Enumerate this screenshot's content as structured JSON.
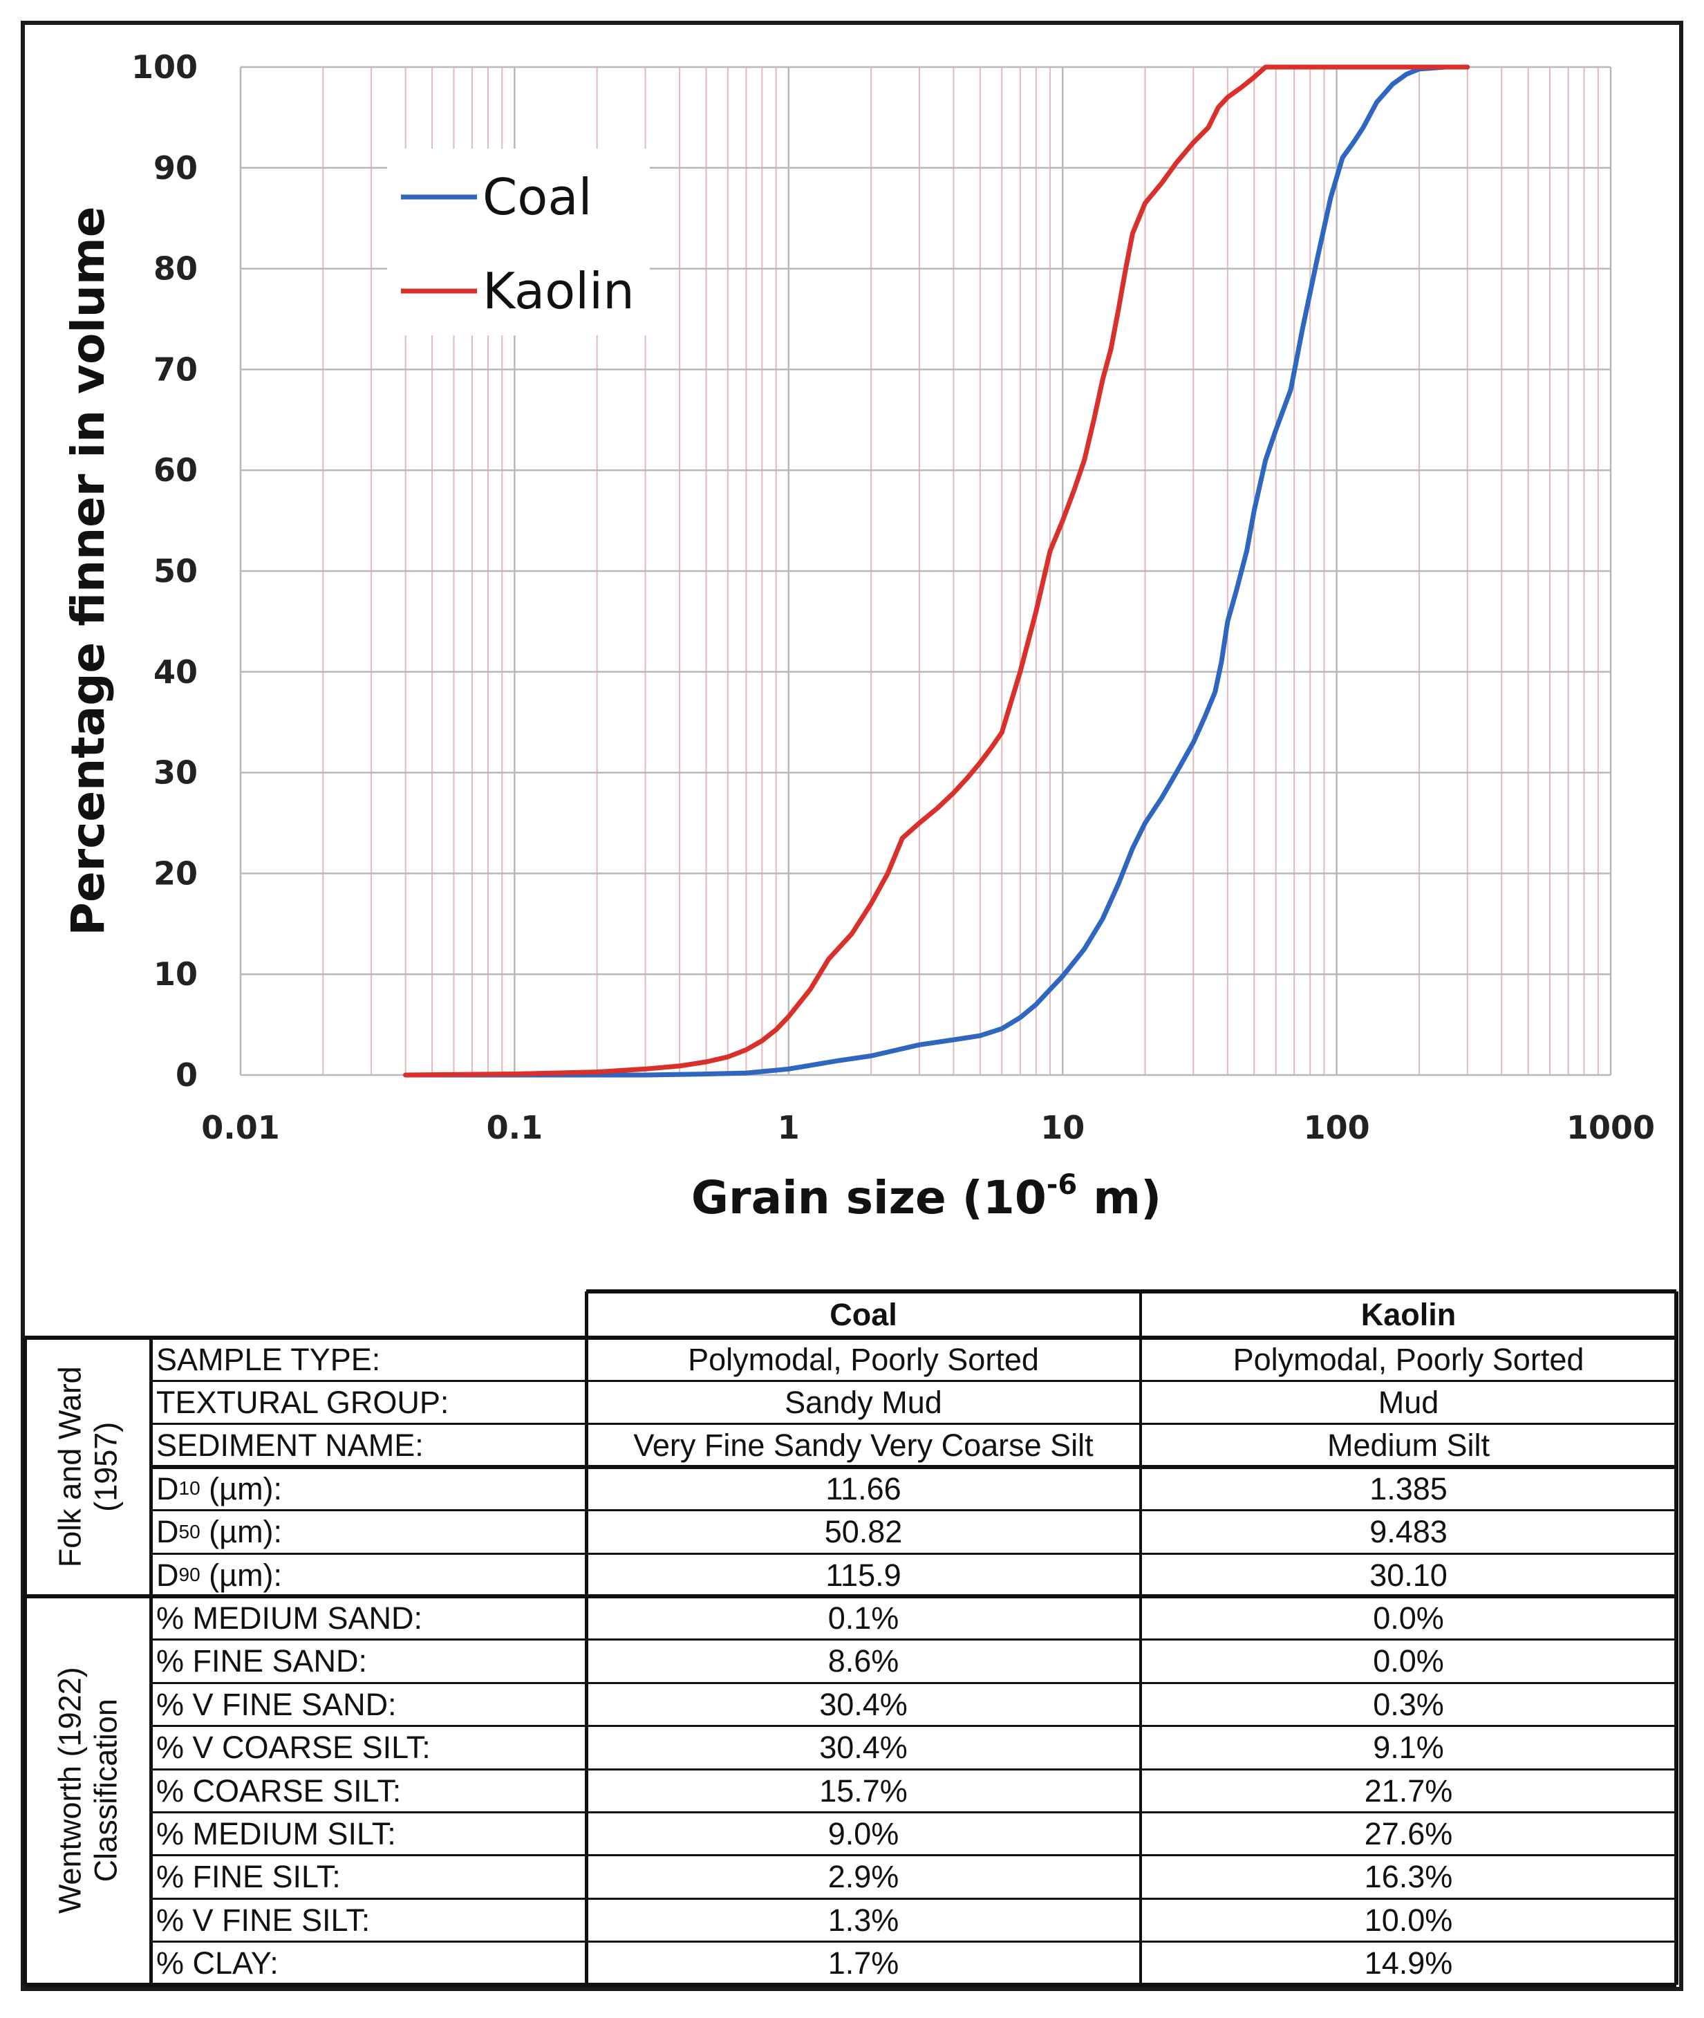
{
  "chart_data": {
    "type": "line",
    "xscale": "log",
    "xlim": [
      0.01,
      1000
    ],
    "ylim": [
      0,
      100
    ],
    "xlabel_main": "Grain size (10",
    "xlabel_sup": "-6",
    "xlabel_tail": " m)",
    "ylabel": "Percentage finner in volume",
    "x_ticks": [
      "0.01",
      "0.1",
      "1",
      "10",
      "100",
      "1000"
    ],
    "y_ticks": [
      "0",
      "10",
      "20",
      "30",
      "40",
      "50",
      "60",
      "70",
      "80",
      "90",
      "100"
    ],
    "grid": true,
    "legend_position": "top-left",
    "series": [
      {
        "name": "Coal",
        "color": "#2e66c0",
        "points": [
          [
            0.04,
            0
          ],
          [
            0.1,
            0
          ],
          [
            0.3,
            0
          ],
          [
            0.5,
            0.1
          ],
          [
            0.7,
            0.2
          ],
          [
            1,
            0.6
          ],
          [
            1.5,
            1.4
          ],
          [
            2,
            1.9
          ],
          [
            3,
            3
          ],
          [
            4,
            3.5
          ],
          [
            5,
            3.9
          ],
          [
            6,
            4.6
          ],
          [
            7,
            5.7
          ],
          [
            8,
            7
          ],
          [
            9,
            8.5
          ],
          [
            10,
            9.8
          ],
          [
            12,
            12.5
          ],
          [
            14,
            15.5
          ],
          [
            16,
            19
          ],
          [
            18,
            22.5
          ],
          [
            20,
            25
          ],
          [
            23,
            27.5
          ],
          [
            26,
            30
          ],
          [
            30,
            33
          ],
          [
            33,
            35.5
          ],
          [
            36,
            38
          ],
          [
            38,
            41
          ],
          [
            40,
            45
          ],
          [
            43,
            48
          ],
          [
            47,
            52
          ],
          [
            50,
            56
          ],
          [
            55,
            61
          ],
          [
            60,
            64
          ],
          [
            68,
            68
          ],
          [
            75,
            74
          ],
          [
            85,
            81
          ],
          [
            95,
            87
          ],
          [
            105,
            91
          ],
          [
            115,
            92.5
          ],
          [
            125,
            94
          ],
          [
            140,
            96.5
          ],
          [
            160,
            98.3
          ],
          [
            180,
            99.3
          ],
          [
            200,
            99.8
          ],
          [
            250,
            100
          ],
          [
            300,
            100
          ]
        ]
      },
      {
        "name": "Kaolin",
        "color": "#d9302c",
        "points": [
          [
            0.04,
            0
          ],
          [
            0.1,
            0.1
          ],
          [
            0.2,
            0.3
          ],
          [
            0.3,
            0.6
          ],
          [
            0.4,
            0.9
          ],
          [
            0.5,
            1.3
          ],
          [
            0.6,
            1.8
          ],
          [
            0.7,
            2.5
          ],
          [
            0.8,
            3.4
          ],
          [
            0.9,
            4.5
          ],
          [
            1,
            5.8
          ],
          [
            1.2,
            8.5
          ],
          [
            1.4,
            11.5
          ],
          [
            1.7,
            14
          ],
          [
            2,
            17
          ],
          [
            2.3,
            20
          ],
          [
            2.6,
            23.5
          ],
          [
            3,
            25
          ],
          [
            3.5,
            26.5
          ],
          [
            4,
            28
          ],
          [
            4.5,
            29.5
          ],
          [
            5,
            31
          ],
          [
            5.5,
            32.5
          ],
          [
            6,
            34
          ],
          [
            7,
            40
          ],
          [
            8,
            46
          ],
          [
            9,
            52
          ],
          [
            10,
            55
          ],
          [
            11,
            58
          ],
          [
            12,
            61
          ],
          [
            13,
            65
          ],
          [
            14,
            69
          ],
          [
            15,
            72
          ],
          [
            16,
            76
          ],
          [
            17,
            80
          ],
          [
            18,
            83.5
          ],
          [
            20,
            86.5
          ],
          [
            23,
            88.5
          ],
          [
            26,
            90.5
          ],
          [
            30,
            92.5
          ],
          [
            34,
            94
          ],
          [
            37,
            96
          ],
          [
            40,
            97
          ],
          [
            45,
            98
          ],
          [
            50,
            99
          ],
          [
            55,
            100
          ],
          [
            100,
            100
          ],
          [
            300,
            100
          ]
        ]
      }
    ]
  },
  "table": {
    "col_headers": [
      "Coal",
      "Kaolin"
    ],
    "groups": [
      {
        "label_lines": [
          "Folk and Ward",
          "(1957)"
        ],
        "rows": [
          {
            "label": "SAMPLE TYPE:",
            "coal": "Polymodal, Poorly Sorted",
            "kaolin": "Polymodal, Poorly Sorted"
          },
          {
            "label": "TEXTURAL GROUP:",
            "coal": "Sandy Mud",
            "kaolin": "Mud"
          },
          {
            "label": "SEDIMENT NAME:",
            "coal": "Very Fine Sandy Very Coarse Silt",
            "kaolin": "Medium Silt"
          },
          {
            "label_main": "D",
            "label_sub": "10",
            "label_tail": " (µm):",
            "coal": "11.66",
            "kaolin": "1.385"
          },
          {
            "label_main": "D",
            "label_sub": "50",
            "label_tail": " (µm):",
            "coal": "50.82",
            "kaolin": "9.483"
          },
          {
            "label_main": "D",
            "label_sub": "90",
            "label_tail": " (µm):",
            "coal": "115.9",
            "kaolin": "30.10"
          }
        ]
      },
      {
        "label_lines": [
          "Wentworth (1922)",
          "Classification"
        ],
        "rows": [
          {
            "label": "% MEDIUM SAND:",
            "coal": "0.1%",
            "kaolin": "0.0%"
          },
          {
            "label": "% FINE SAND:",
            "coal": "8.6%",
            "kaolin": "0.0%"
          },
          {
            "label": "% V FINE SAND:",
            "coal": "30.4%",
            "kaolin": "0.3%"
          },
          {
            "label": "% V COARSE SILT:",
            "coal": "30.4%",
            "kaolin": "9.1%"
          },
          {
            "label": "% COARSE SILT:",
            "coal": "15.7%",
            "kaolin": "21.7%"
          },
          {
            "label": "% MEDIUM SILT:",
            "coal": "9.0%",
            "kaolin": "27.6%"
          },
          {
            "label": "% FINE SILT:",
            "coal": "2.9%",
            "kaolin": "16.3%"
          },
          {
            "label": "% V FINE SILT:",
            "coal": "1.3%",
            "kaolin": "10.0%"
          },
          {
            "label": "% CLAY:",
            "coal": "1.7%",
            "kaolin": "14.9%"
          }
        ]
      }
    ]
  }
}
